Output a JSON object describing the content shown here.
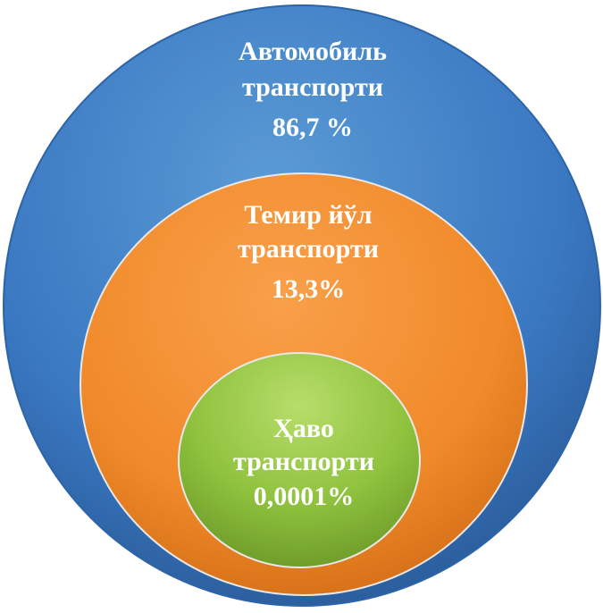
{
  "nodes": [
    {
      "label": [
        "Автомобиль",
        "транспорти"
      ],
      "value": "86,7 %"
    },
    {
      "label": [
        "Темир йўл",
        "транспорти"
      ],
      "value": "13,3%"
    },
    {
      "label": [
        "Ҳаво",
        "транспорти"
      ],
      "value": "0,0001%"
    }
  ]
}
